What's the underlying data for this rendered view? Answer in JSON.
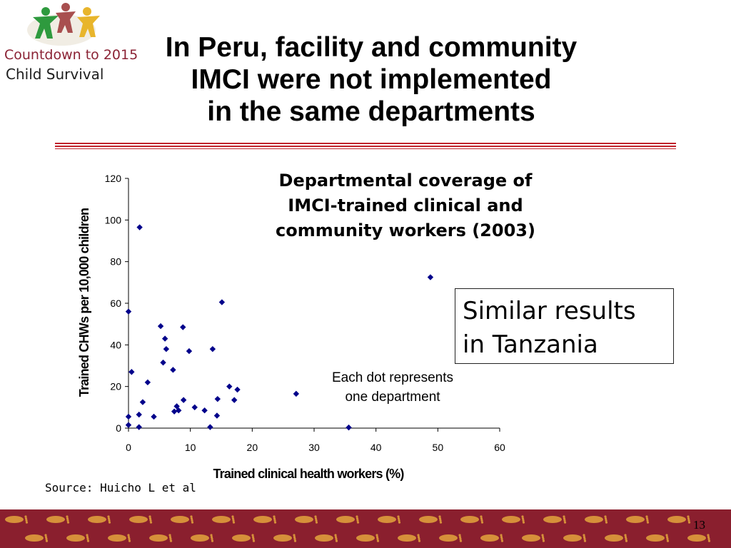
{
  "logo": {
    "line1": "Countdown to 2015",
    "line2": "Child Survival",
    "figure_colors": [
      "#2e9a3e",
      "#a84f4f",
      "#e8b52c"
    ]
  },
  "slide": {
    "title_lines": [
      "In Peru, facility and community",
      "IMCI were not implemented",
      "in the same departments"
    ],
    "rule_color": "#c0222c",
    "callout": [
      "Similar results",
      "in Tanzania"
    ],
    "source": "Source: Huicho L et al",
    "page_number": "13",
    "footer_color": "#8a1f2e",
    "footprint_color": "#d6903a"
  },
  "chart_data": {
    "type": "scatter",
    "title_lines": [
      "Departmental coverage of",
      "IMCI-trained clinical and",
      "community workers (2003)"
    ],
    "xlabel": "Trained clinical health workers (%)",
    "ylabel": "Trained CHWs per 10,000 children",
    "xlim": [
      0,
      60
    ],
    "ylim": [
      0,
      120
    ],
    "xticks": [
      0,
      10,
      20,
      30,
      40,
      50,
      60
    ],
    "yticks": [
      0,
      20,
      40,
      60,
      80,
      100,
      120
    ],
    "grid": false,
    "annotation_lines": [
      "Each dot represents",
      "one department"
    ],
    "marker_color": "#00008b",
    "points": [
      {
        "x": 0,
        "y": 56
      },
      {
        "x": 0,
        "y": 5.5
      },
      {
        "x": 0,
        "y": 1.5
      },
      {
        "x": 0.5,
        "y": 27
      },
      {
        "x": 1.8,
        "y": 96.5
      },
      {
        "x": 1.7,
        "y": 6.5
      },
      {
        "x": 1.7,
        "y": 0.5
      },
      {
        "x": 2.3,
        "y": 12.5
      },
      {
        "x": 3.1,
        "y": 22
      },
      {
        "x": 4.1,
        "y": 5.5
      },
      {
        "x": 5.2,
        "y": 49
      },
      {
        "x": 5.6,
        "y": 31.5
      },
      {
        "x": 5.9,
        "y": 43
      },
      {
        "x": 6.1,
        "y": 38
      },
      {
        "x": 7.2,
        "y": 28
      },
      {
        "x": 7.4,
        "y": 8
      },
      {
        "x": 7.8,
        "y": 10.5
      },
      {
        "x": 8.1,
        "y": 8.5
      },
      {
        "x": 8.8,
        "y": 48.5
      },
      {
        "x": 8.9,
        "y": 13.5
      },
      {
        "x": 9.8,
        "y": 37
      },
      {
        "x": 10.7,
        "y": 10
      },
      {
        "x": 12.3,
        "y": 8.5
      },
      {
        "x": 13.2,
        "y": 0.5
      },
      {
        "x": 13.6,
        "y": 38
      },
      {
        "x": 14.4,
        "y": 14
      },
      {
        "x": 14.3,
        "y": 6
      },
      {
        "x": 15.1,
        "y": 60.5
      },
      {
        "x": 16.3,
        "y": 20
      },
      {
        "x": 17.1,
        "y": 13.5
      },
      {
        "x": 17.6,
        "y": 18.5
      },
      {
        "x": 27.1,
        "y": 16.5
      },
      {
        "x": 35.6,
        "y": 0.3
      },
      {
        "x": 48.8,
        "y": 72.5
      }
    ]
  }
}
